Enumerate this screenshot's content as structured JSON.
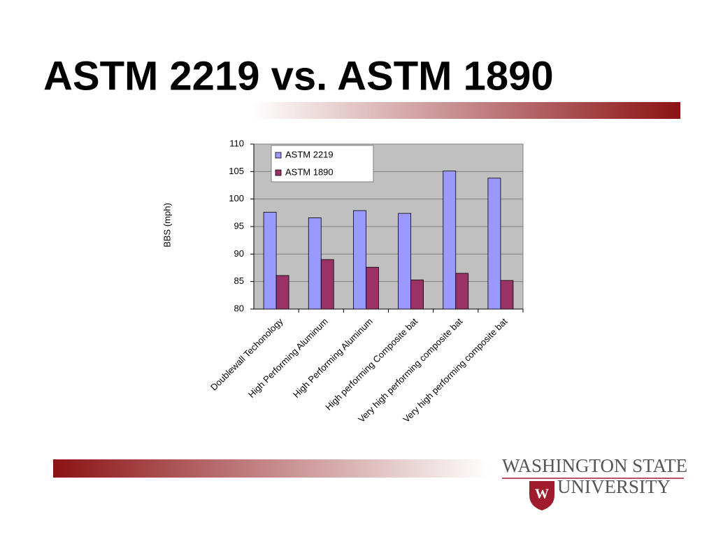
{
  "chart_data": {
    "type": "bar",
    "title": "ASTM 2219 vs. ASTM 1890",
    "ylabel": "BBS (mph)",
    "categories": [
      "Doublewall Techonology",
      "High Performing Aluminum",
      "High Performing Aluminum",
      "High performing Composite bat",
      "Very high performing composite bat",
      "Very high performing composite bat"
    ],
    "series": [
      {
        "name": "ASTM 2219",
        "color": "#9999ff",
        "values": [
          97.6,
          96.6,
          97.9,
          97.4,
          105.1,
          103.8
        ]
      },
      {
        "name": "ASTM 1890",
        "color": "#993366",
        "values": [
          86.1,
          89.0,
          87.6,
          85.3,
          86.5,
          85.2
        ]
      }
    ],
    "ylim": [
      80,
      110
    ],
    "yticks": [
      80,
      85,
      90,
      95,
      100,
      105,
      110
    ],
    "grid": true,
    "legend": "top-left"
  },
  "logo": {
    "line1": "WASHINGTON STATE",
    "line2": "UNIVERSITY"
  }
}
